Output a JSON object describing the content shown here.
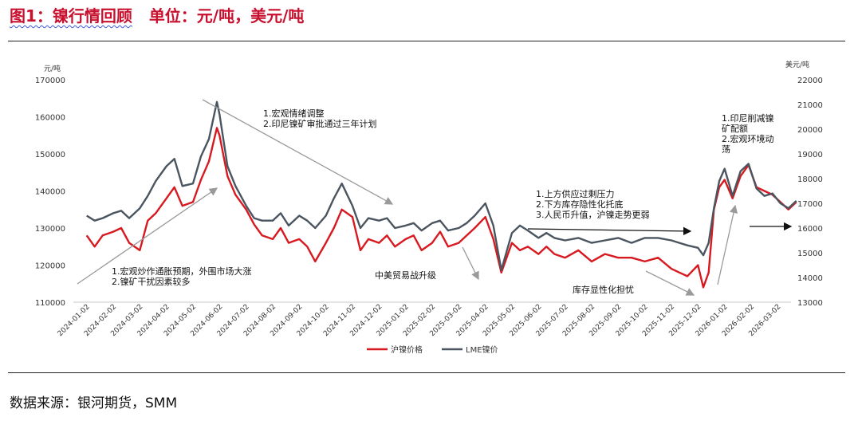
{
  "header": {
    "figure_label": "图1：镍行情回顾",
    "unit_label": "单位：元/吨，美元/吨"
  },
  "footer": {
    "source": "数据来源：银河期货，SMM"
  },
  "colors": {
    "shfe": "#d71920",
    "lme": "#4a5560",
    "arrow": "#9a9a9a"
  },
  "chart_data": {
    "type": "line",
    "left_axis": {
      "unit": "元/吨",
      "min": 110000,
      "max": 170000,
      "ticks": [
        110000,
        120000,
        130000,
        140000,
        150000,
        160000,
        170000
      ]
    },
    "right_axis": {
      "unit": "美元/吨",
      "min": 13000,
      "max": 22000,
      "ticks": [
        13000,
        14000,
        15000,
        16000,
        17000,
        18000,
        19000,
        20000,
        21000,
        22000
      ]
    },
    "x_labels": [
      "2024-01-02",
      "2024-02-02",
      "2024-03-02",
      "2024-04-02",
      "2024-05-02",
      "2024-06-02",
      "2024-07-02",
      "2024-08-02",
      "2024-09-02",
      "2024-10-02",
      "2024-11-02",
      "2024-12-02",
      "2025-01-02",
      "2025-02-02",
      "2025-03-02",
      "2025-04-02",
      "2025-05-02",
      "2025-06-02",
      "2025-07-02",
      "2025-08-02",
      "2025-09-02",
      "2025-10-02",
      "2025-11-02",
      "2025-12-02",
      "2026-01-02",
      "2026-02-02",
      "2026-03-02"
    ],
    "series": [
      {
        "name": "沪镍价格",
        "axis": "left",
        "color": "#d71920",
        "x": [
          0.0,
          0.3,
          0.6,
          1.0,
          1.3,
          1.6,
          2.0,
          2.3,
          2.6,
          3.0,
          3.3,
          3.6,
          4.0,
          4.3,
          4.6,
          4.9,
          5.0,
          5.3,
          5.6,
          6.0,
          6.3,
          6.6,
          7.0,
          7.3,
          7.6,
          8.0,
          8.3,
          8.6,
          9.0,
          9.3,
          9.6,
          10.0,
          10.3,
          10.6,
          11.0,
          11.3,
          11.6,
          12.0,
          12.3,
          12.6,
          13.0,
          13.3,
          13.6,
          14.0,
          14.3,
          14.6,
          15.0,
          15.3,
          15.6,
          16.0,
          16.3,
          16.6,
          17.0,
          17.3,
          17.6,
          18.0,
          18.5,
          19.0,
          19.5,
          20.0,
          20.5,
          21.0,
          21.5,
          22.0,
          22.3,
          22.6,
          23.0,
          23.2,
          23.4,
          23.6,
          23.8,
          24.0,
          24.3,
          24.6,
          24.9,
          25.2,
          25.5,
          25.8,
          26.1,
          26.4,
          26.7
        ],
        "y": [
          128000,
          125000,
          128000,
          129000,
          130000,
          126000,
          124000,
          132000,
          134000,
          138000,
          141000,
          136000,
          137000,
          143000,
          148000,
          157000,
          155000,
          144000,
          139000,
          135000,
          131000,
          128000,
          127000,
          130000,
          126000,
          127000,
          125000,
          121000,
          126000,
          130000,
          135000,
          133000,
          124000,
          127000,
          126000,
          128000,
          125000,
          127000,
          128000,
          124000,
          126000,
          129000,
          125000,
          126000,
          128000,
          130000,
          133000,
          127000,
          118000,
          126000,
          124000,
          125000,
          123000,
          125000,
          123000,
          122000,
          124000,
          121000,
          123000,
          122000,
          122000,
          121000,
          122000,
          119000,
          118000,
          117000,
          120000,
          114000,
          118000,
          135000,
          141000,
          143000,
          138000,
          144000,
          147000,
          141000,
          140000,
          139000,
          137000,
          135000,
          137000
        ]
      },
      {
        "name": "LME镍价",
        "axis": "right",
        "color": "#4a5560",
        "x": [
          0.0,
          0.3,
          0.6,
          1.0,
          1.3,
          1.6,
          2.0,
          2.3,
          2.6,
          3.0,
          3.3,
          3.6,
          4.0,
          4.3,
          4.6,
          4.9,
          5.0,
          5.3,
          5.6,
          6.0,
          6.3,
          6.6,
          7.0,
          7.3,
          7.6,
          8.0,
          8.3,
          8.6,
          9.0,
          9.3,
          9.6,
          10.0,
          10.3,
          10.6,
          11.0,
          11.3,
          11.6,
          12.0,
          12.3,
          12.6,
          13.0,
          13.3,
          13.6,
          14.0,
          14.3,
          14.6,
          15.0,
          15.3,
          15.6,
          16.0,
          16.3,
          16.6,
          17.0,
          17.3,
          17.6,
          18.0,
          18.5,
          19.0,
          19.5,
          20.0,
          20.5,
          21.0,
          21.5,
          22.0,
          22.3,
          22.6,
          23.0,
          23.2,
          23.4,
          23.6,
          23.8,
          24.0,
          24.3,
          24.6,
          24.9,
          25.2,
          25.5,
          25.8,
          26.1,
          26.4,
          26.7
        ],
        "y": [
          16500,
          16300,
          16400,
          16600,
          16700,
          16400,
          16800,
          17300,
          17900,
          18500,
          18800,
          17700,
          17800,
          18900,
          19600,
          21100,
          20600,
          18500,
          17700,
          16900,
          16400,
          16300,
          16300,
          16600,
          16100,
          16500,
          16300,
          16000,
          16500,
          17200,
          17800,
          16900,
          16000,
          16400,
          16300,
          16400,
          16000,
          16100,
          16200,
          15900,
          16200,
          16300,
          15900,
          16000,
          16200,
          16500,
          17000,
          16100,
          14300,
          15800,
          16100,
          15900,
          15600,
          15800,
          15600,
          15500,
          15600,
          15400,
          15500,
          15600,
          15400,
          15600,
          15600,
          15500,
          15400,
          15300,
          15200,
          14900,
          15400,
          16800,
          17900,
          18400,
          17300,
          18300,
          18600,
          17600,
          17300,
          17400,
          17000,
          16800,
          17100
        ]
      }
    ],
    "legend": [
      "沪镍价格",
      "LME镍价"
    ],
    "legend_position": "bottom-center",
    "annotations": [
      {
        "lines": [
          "1.宏观炒作通胀预期，外围市场大涨",
          "2.镍矿干扰因素较多"
        ]
      },
      {
        "lines": [
          "1.宏观情绪调整",
          "2.印尼镍矿审批通过三年计划"
        ]
      },
      {
        "lines": [
          "中美贸易战升级"
        ]
      },
      {
        "lines": [
          "1.上方供应过剩压力",
          "2.下方库存隐性化托底",
          "3.人民币升值，沪镍走势更弱"
        ]
      },
      {
        "lines": [
          "库存显性化担忧"
        ]
      },
      {
        "lines": [
          "1.印尼削减镍",
          "矿配额",
          "2.宏观环境动",
          "荡"
        ]
      }
    ]
  }
}
